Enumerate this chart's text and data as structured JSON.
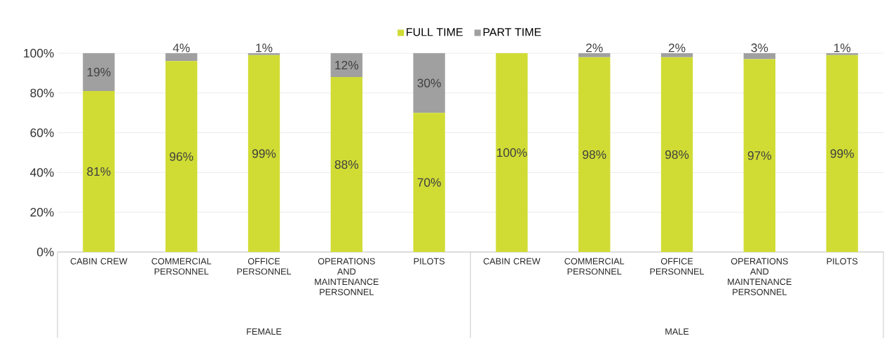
{
  "chart_data": {
    "type": "bar",
    "stacked": true,
    "categories": [
      "CABIN CREW",
      "COMMERCIAL PERSONNEL",
      "OFFICE PERSONNEL",
      "OPERATIONS AND MAINTENANCE PERSONNEL",
      "PILOTS",
      "CABIN CREW",
      "COMMERCIAL PERSONNEL",
      "OFFICE PERSONNEL",
      "OPERATIONS AND MAINTENANCE PERSONNEL",
      "PILOTS"
    ],
    "series": [
      {
        "name": "FULL TIME",
        "color": "#d0dc34",
        "values": [
          81,
          96,
          99,
          88,
          70,
          100,
          98,
          98,
          97,
          99
        ],
        "value_labels": [
          "81%",
          "96%",
          "99%",
          "88%",
          "70%",
          "100%",
          "98%",
          "98%",
          "97%",
          "99%"
        ]
      },
      {
        "name": "PART TIME",
        "color": "#a0a0a0",
        "values": [
          19,
          4,
          1,
          12,
          30,
          0,
          2,
          2,
          3,
          1
        ],
        "value_labels": [
          "19%",
          "4%",
          "1%",
          "12%",
          "30%",
          null,
          "2%",
          "2%",
          "3%",
          "1%"
        ]
      }
    ],
    "ylim": [
      0,
      100
    ],
    "yticks": [
      {
        "value": 0,
        "label": "0%"
      },
      {
        "value": 20,
        "label": "20%"
      },
      {
        "value": 40,
        "label": "40%"
      },
      {
        "value": 60,
        "label": "60%"
      },
      {
        "value": 80,
        "label": "80%"
      },
      {
        "value": 100,
        "label": "100%"
      }
    ],
    "grid": "y",
    "legend": "top",
    "annotations": [
      "FEMALE",
      "MALE"
    ]
  }
}
